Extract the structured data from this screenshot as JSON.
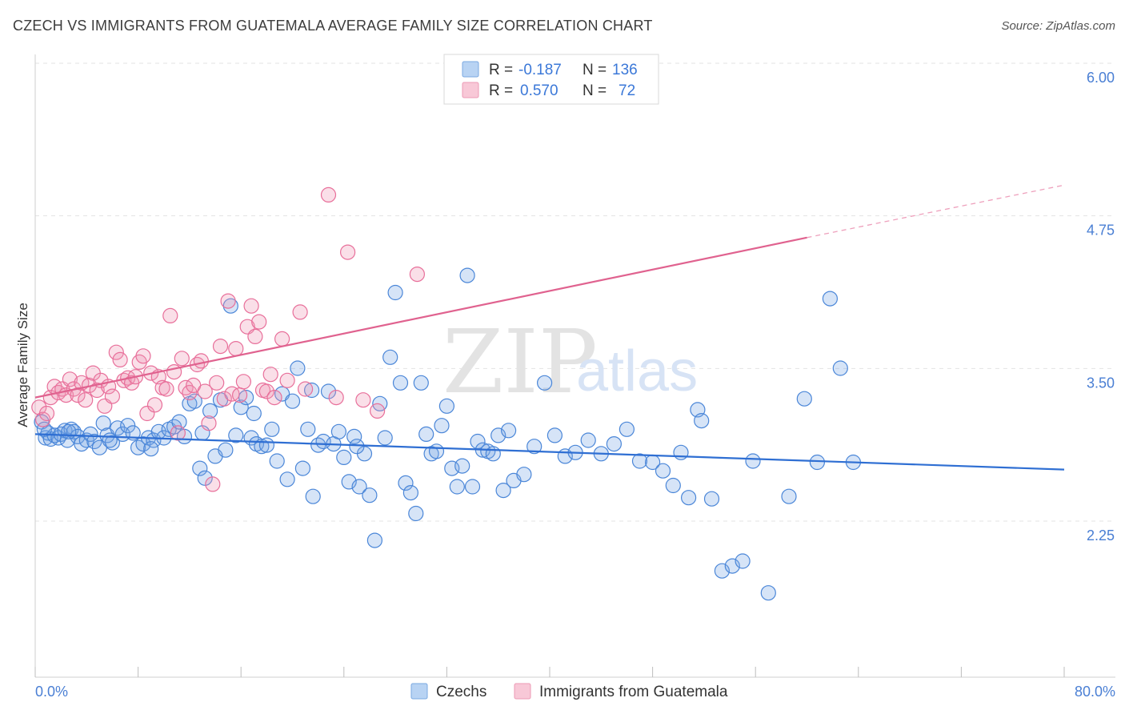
{
  "header": {
    "title": "CZECH VS IMMIGRANTS FROM GUATEMALA AVERAGE FAMILY SIZE CORRELATION CHART",
    "source": "Source: ZipAtlas.com"
  },
  "legend": {
    "r_label": "R =",
    "n_label": "N =",
    "items": [
      {
        "r": "-0.187",
        "n": "136",
        "color": "#a9c8f0"
      },
      {
        "r": "0.570",
        "n": "72",
        "color": "#f5b9cc"
      }
    ]
  },
  "bottom_legend": {
    "items": [
      {
        "label": "Czechs",
        "color": "#a9c8f0"
      },
      {
        "label": "Immigrants from Guatemala",
        "color": "#f5b9cc"
      }
    ]
  },
  "watermark": {
    "zip": "ZIP",
    "atlas": "atlas"
  },
  "colors": {
    "blue": "#4a86d8",
    "pink": "#e86f9a",
    "blue_fill": "rgba(120,165,230,0.30)",
    "pink_fill": "rgba(240,150,180,0.30)"
  },
  "chart_data": {
    "type": "scatter",
    "title": "CZECH VS IMMIGRANTS FROM GUATEMALA AVERAGE FAMILY SIZE CORRELATION CHART",
    "xlabel": "",
    "ylabel": "Average Family Size",
    "xlim": [
      0,
      80
    ],
    "ylim": [
      1.0,
      6.1
    ],
    "x_tick_labels": [
      "0.0%",
      "80.0%"
    ],
    "y_ticks": [
      2.25,
      3.5,
      4.75,
      6.0
    ],
    "y_tick_labels": [
      "2.25",
      "3.50",
      "4.75",
      "6.00"
    ],
    "grid": true,
    "series": [
      {
        "name": "Czechs",
        "r": -0.187,
        "n": 136,
        "trend": {
          "x": [
            0,
            80
          ],
          "y": [
            3.08,
            2.79
          ]
        },
        "points": [
          [
            0.5,
            3.18
          ],
          [
            0.8,
            3.05
          ],
          [
            1.0,
            3.09
          ],
          [
            1.2,
            3.04
          ],
          [
            1.5,
            3.07
          ],
          [
            1.8,
            3.05
          ],
          [
            2.0,
            3.08
          ],
          [
            2.3,
            3.11
          ],
          [
            2.5,
            3.03
          ],
          [
            2.8,
            3.12
          ],
          [
            3.0,
            3.1
          ],
          [
            3.3,
            3.06
          ],
          [
            3.6,
            3.0
          ],
          [
            4.0,
            3.03
          ],
          [
            4.3,
            3.08
          ],
          [
            4.6,
            3.02
          ],
          [
            5.0,
            2.97
          ],
          [
            5.3,
            3.17
          ],
          [
            5.6,
            3.07
          ],
          [
            6.0,
            3.01
          ],
          [
            6.4,
            3.13
          ],
          [
            6.8,
            3.08
          ],
          [
            7.2,
            3.15
          ],
          [
            7.6,
            3.09
          ],
          [
            8.0,
            2.97
          ],
          [
            8.4,
            3.0
          ],
          [
            8.8,
            3.05
          ],
          [
            9.2,
            3.03
          ],
          [
            9.6,
            3.1
          ],
          [
            10.0,
            3.05
          ],
          [
            10.4,
            3.12
          ],
          [
            10.8,
            3.14
          ],
          [
            11.2,
            3.18
          ],
          [
            11.6,
            3.06
          ],
          [
            12.0,
            3.33
          ],
          [
            12.4,
            3.35
          ],
          [
            12.8,
            2.8
          ],
          [
            13.2,
            2.72
          ],
          [
            13.6,
            3.27
          ],
          [
            14.0,
            2.9
          ],
          [
            14.4,
            3.36
          ],
          [
            14.8,
            2.95
          ],
          [
            15.2,
            4.13
          ],
          [
            15.6,
            3.07
          ],
          [
            16.0,
            3.3
          ],
          [
            16.4,
            3.38
          ],
          [
            16.8,
            3.05
          ],
          [
            17.2,
            3.0
          ],
          [
            17.6,
            2.98
          ],
          [
            18.0,
            2.99
          ],
          [
            18.4,
            3.12
          ],
          [
            18.8,
            2.86
          ],
          [
            19.2,
            3.41
          ],
          [
            19.6,
            2.71
          ],
          [
            20.0,
            3.35
          ],
          [
            20.4,
            3.62
          ],
          [
            20.8,
            2.8
          ],
          [
            21.2,
            3.12
          ],
          [
            21.6,
            2.57
          ],
          [
            22.0,
            2.99
          ],
          [
            22.4,
            3.02
          ],
          [
            22.8,
            3.43
          ],
          [
            23.2,
            3.0
          ],
          [
            23.6,
            3.1
          ],
          [
            24.0,
            2.89
          ],
          [
            24.4,
            2.69
          ],
          [
            24.8,
            3.06
          ],
          [
            25.2,
            2.65
          ],
          [
            25.6,
            2.92
          ],
          [
            26.0,
            2.58
          ],
          [
            26.4,
            2.21
          ],
          [
            26.8,
            3.33
          ],
          [
            27.2,
            3.05
          ],
          [
            27.6,
            3.71
          ],
          [
            28.0,
            4.24
          ],
          [
            28.4,
            3.5
          ],
          [
            28.8,
            2.68
          ],
          [
            29.2,
            2.6
          ],
          [
            29.6,
            2.43
          ],
          [
            30.0,
            3.5
          ],
          [
            30.4,
            3.08
          ],
          [
            30.8,
            2.92
          ],
          [
            31.2,
            2.94
          ],
          [
            31.6,
            3.15
          ],
          [
            32.0,
            3.31
          ],
          [
            32.4,
            2.8
          ],
          [
            32.8,
            2.65
          ],
          [
            33.2,
            2.82
          ],
          [
            33.6,
            4.38
          ],
          [
            34.0,
            2.65
          ],
          [
            34.4,
            3.02
          ],
          [
            34.8,
            2.95
          ],
          [
            35.2,
            2.94
          ],
          [
            35.6,
            2.92
          ],
          [
            36.0,
            3.07
          ],
          [
            36.4,
            2.62
          ],
          [
            36.8,
            3.11
          ],
          [
            37.2,
            2.7
          ],
          [
            38.0,
            2.75
          ],
          [
            38.8,
            2.98
          ],
          [
            39.6,
            3.5
          ],
          [
            40.4,
            3.07
          ],
          [
            41.2,
            2.9
          ],
          [
            42.0,
            2.93
          ],
          [
            43.0,
            3.03
          ],
          [
            44.0,
            2.92
          ],
          [
            45.0,
            3.0
          ],
          [
            46.0,
            3.12
          ],
          [
            47.0,
            2.86
          ],
          [
            48.0,
            2.85
          ],
          [
            48.8,
            2.78
          ],
          [
            49.6,
            2.66
          ],
          [
            50.2,
            2.93
          ],
          [
            50.8,
            2.56
          ],
          [
            51.5,
            3.28
          ],
          [
            51.8,
            3.19
          ],
          [
            52.6,
            2.55
          ],
          [
            53.4,
            1.96
          ],
          [
            54.2,
            2.0
          ],
          [
            55.0,
            2.04
          ],
          [
            55.8,
            2.86
          ],
          [
            57.0,
            1.78
          ],
          [
            58.6,
            2.57
          ],
          [
            59.8,
            3.37
          ],
          [
            60.8,
            2.85
          ],
          [
            61.8,
            4.19
          ],
          [
            62.6,
            3.62
          ],
          [
            63.6,
            2.85
          ],
          [
            0.7,
            3.12
          ],
          [
            2.6,
            3.1
          ],
          [
            5.8,
            3.03
          ],
          [
            9.0,
            2.96
          ],
          [
            13.0,
            3.09
          ],
          [
            17.0,
            3.25
          ],
          [
            21.5,
            3.44
          ],
          [
            25.0,
            2.98
          ]
        ]
      },
      {
        "name": "Immigrants from Guatemala",
        "r": 0.57,
        "n": 72,
        "trend": {
          "x": [
            0,
            60
          ],
          "y": [
            3.38,
            4.69
          ]
        },
        "trend_dashed": {
          "x": [
            60,
            80
          ],
          "y": [
            4.69,
            5.12
          ]
        },
        "points": [
          [
            0.3,
            3.3
          ],
          [
            0.6,
            3.2
          ],
          [
            0.9,
            3.25
          ],
          [
            1.2,
            3.38
          ],
          [
            1.5,
            3.47
          ],
          [
            1.8,
            3.42
          ],
          [
            2.1,
            3.45
          ],
          [
            2.4,
            3.4
          ],
          [
            2.7,
            3.53
          ],
          [
            3.0,
            3.45
          ],
          [
            3.3,
            3.4
          ],
          [
            3.6,
            3.5
          ],
          [
            3.9,
            3.36
          ],
          [
            4.2,
            3.48
          ],
          [
            4.5,
            3.58
          ],
          [
            4.8,
            3.44
          ],
          [
            5.1,
            3.52
          ],
          [
            5.4,
            3.31
          ],
          [
            5.7,
            3.47
          ],
          [
            6.0,
            3.39
          ],
          [
            6.3,
            3.75
          ],
          [
            6.6,
            3.69
          ],
          [
            6.9,
            3.52
          ],
          [
            7.2,
            3.54
          ],
          [
            7.5,
            3.5
          ],
          [
            7.8,
            3.55
          ],
          [
            8.1,
            3.67
          ],
          [
            8.4,
            3.72
          ],
          [
            8.7,
            3.25
          ],
          [
            9.0,
            3.58
          ],
          [
            9.3,
            3.32
          ],
          [
            9.6,
            3.55
          ],
          [
            9.9,
            3.46
          ],
          [
            10.2,
            3.45
          ],
          [
            10.5,
            4.05
          ],
          [
            10.8,
            3.59
          ],
          [
            11.1,
            3.09
          ],
          [
            11.4,
            3.7
          ],
          [
            11.7,
            3.46
          ],
          [
            12.0,
            3.42
          ],
          [
            12.3,
            3.48
          ],
          [
            12.6,
            3.65
          ],
          [
            12.9,
            3.68
          ],
          [
            13.2,
            3.43
          ],
          [
            13.5,
            3.17
          ],
          [
            13.8,
            2.67
          ],
          [
            14.1,
            3.5
          ],
          [
            14.4,
            3.8
          ],
          [
            14.7,
            3.37
          ],
          [
            15.0,
            4.17
          ],
          [
            15.3,
            3.41
          ],
          [
            15.6,
            3.78
          ],
          [
            15.9,
            3.4
          ],
          [
            16.2,
            3.51
          ],
          [
            16.5,
            3.96
          ],
          [
            16.8,
            4.13
          ],
          [
            17.1,
            3.88
          ],
          [
            17.4,
            4.0
          ],
          [
            17.7,
            3.44
          ],
          [
            18.0,
            3.43
          ],
          [
            18.3,
            3.57
          ],
          [
            18.6,
            3.38
          ],
          [
            19.2,
            3.86
          ],
          [
            19.6,
            3.52
          ],
          [
            20.6,
            4.08
          ],
          [
            21.0,
            3.45
          ],
          [
            22.8,
            5.04
          ],
          [
            23.4,
            3.38
          ],
          [
            24.3,
            4.57
          ],
          [
            25.5,
            3.36
          ],
          [
            26.6,
            3.27
          ],
          [
            29.7,
            4.39
          ]
        ]
      }
    ]
  }
}
